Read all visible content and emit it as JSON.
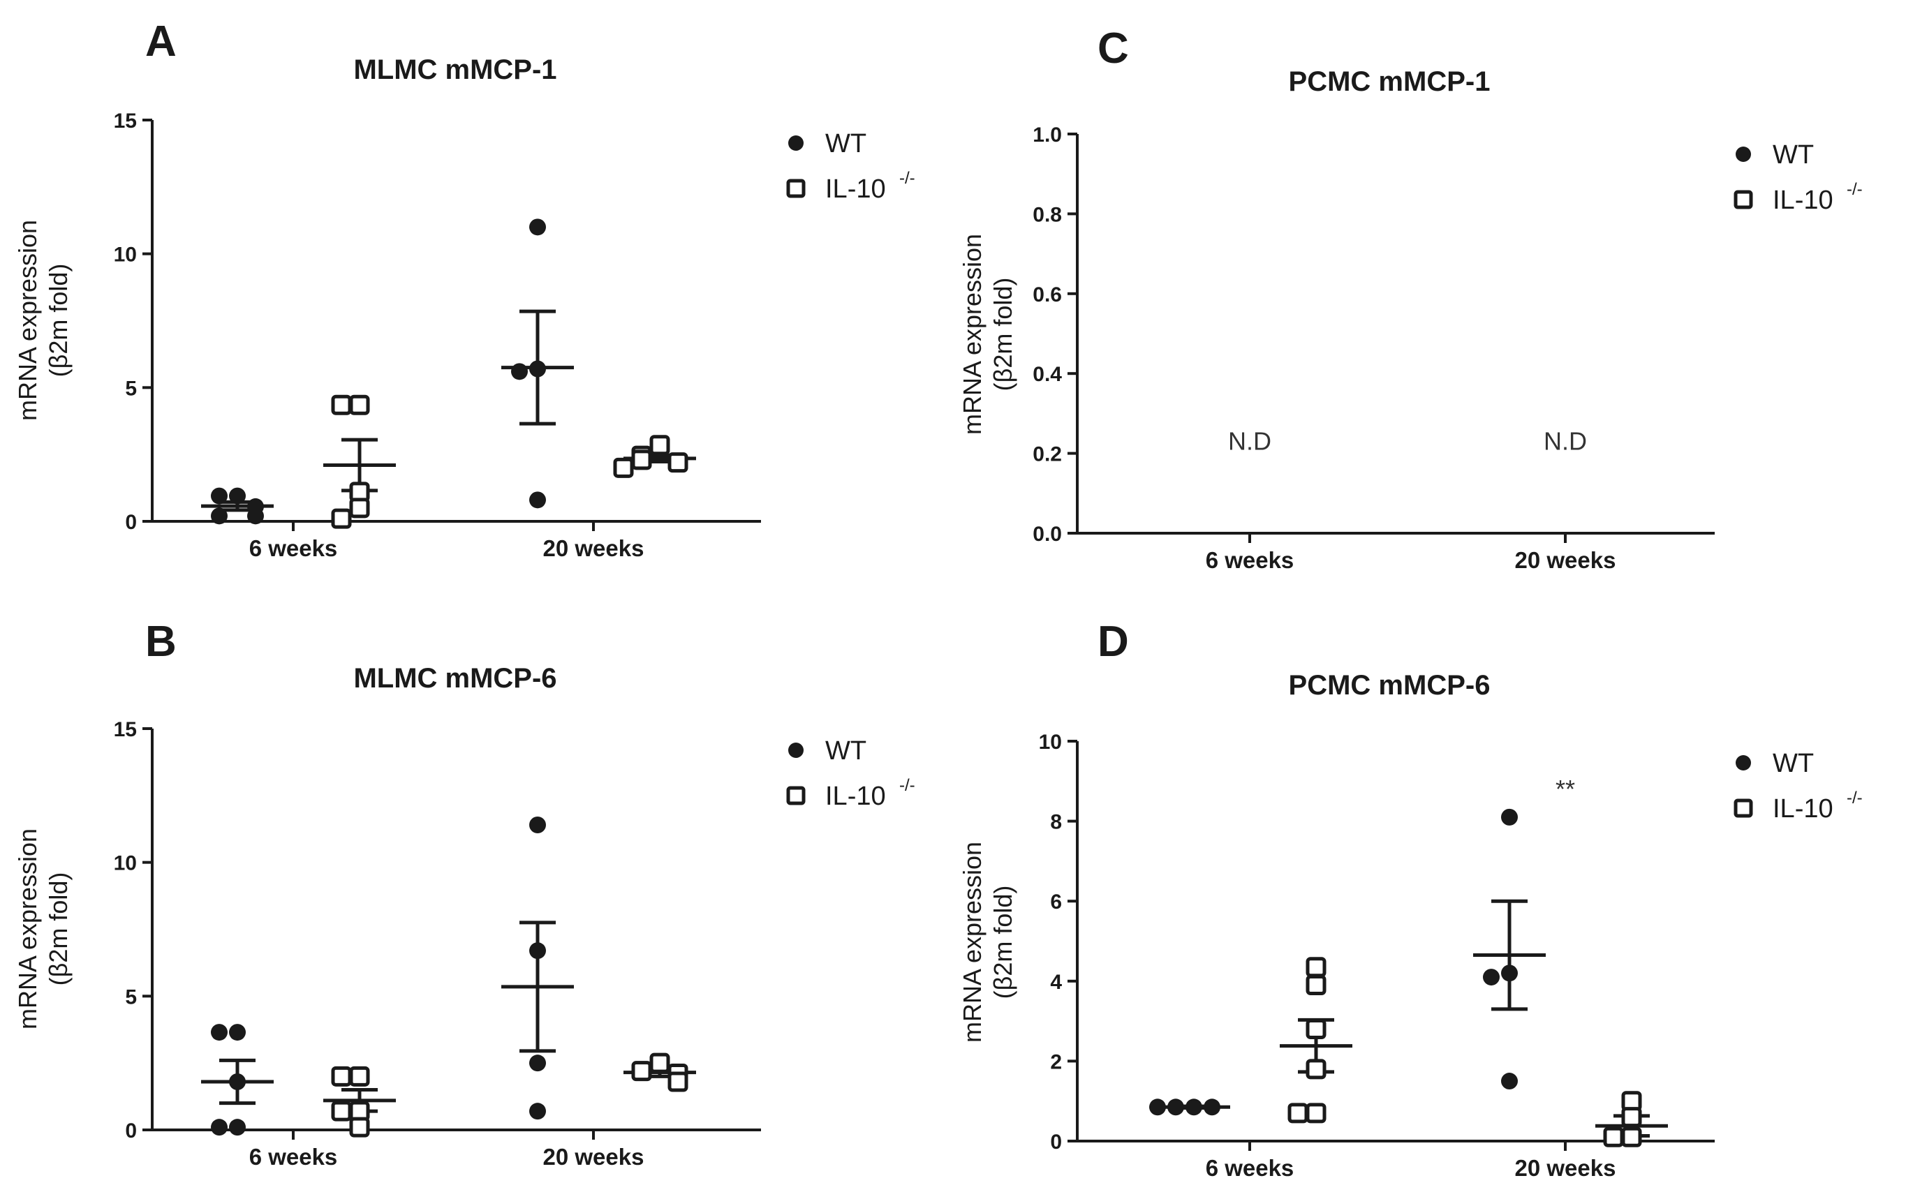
{
  "colors": {
    "ink": "#1a1a1a",
    "background": "#ffffff"
  },
  "chart_data": [
    {
      "id": "A",
      "type": "scatter",
      "panel_label": "A",
      "title": "MLMC mMCP-1",
      "ylabel": "mRNA expression",
      "ylabel2": "(β2m fold)",
      "ylim": [
        0,
        15
      ],
      "yticks": [
        0,
        5,
        10,
        15
      ],
      "categories": [
        "6 weeks",
        "20 weeks"
      ],
      "legend": {
        "wt": "WT",
        "ko_base": "IL-10",
        "ko_sup": "-/-"
      },
      "series": [
        {
          "name": "WT",
          "marker": "filled-circle",
          "groups": [
            {
              "category": "6 weeks",
              "points": [
                0.95,
                0.95,
                0.55,
                0.2,
                0.2
              ],
              "mean": 0.57,
              "sem": 0.15
            },
            {
              "category": "20 weeks",
              "points": [
                11.0,
                5.7,
                5.6,
                0.8
              ],
              "mean": 5.75,
              "sem": 2.1
            }
          ]
        },
        {
          "name": "IL-10-/-",
          "marker": "open-square",
          "groups": [
            {
              "category": "6 weeks",
              "points": [
                4.35,
                4.35,
                1.1,
                0.5,
                0.1
              ],
              "mean": 2.1,
              "sem": 0.95
            },
            {
              "category": "20 weeks",
              "points": [
                2.85,
                2.45,
                2.3,
                2.2,
                2.0
              ],
              "mean": 2.35,
              "sem": 0.12
            }
          ]
        }
      ],
      "annotations": []
    },
    {
      "id": "B",
      "type": "scatter",
      "panel_label": "B",
      "title": "MLMC mMCP-6",
      "ylabel": "mRNA expression",
      "ylabel2": "(β2m fold)",
      "ylim": [
        0,
        15
      ],
      "yticks": [
        0,
        5,
        10,
        15
      ],
      "categories": [
        "6 weeks",
        "20 weeks"
      ],
      "legend": {
        "wt": "WT",
        "ko_base": "IL-10",
        "ko_sup": "-/-"
      },
      "series": [
        {
          "name": "WT",
          "marker": "filled-circle",
          "groups": [
            {
              "category": "6 weeks",
              "points": [
                3.65,
                3.65,
                1.8,
                0.1,
                0.1
              ],
              "mean": 1.8,
              "sem": 0.8
            },
            {
              "category": "20 weeks",
              "points": [
                11.4,
                6.7,
                2.5,
                0.7
              ],
              "mean": 5.35,
              "sem": 2.4
            }
          ]
        },
        {
          "name": "IL-10-/-",
          "marker": "open-square",
          "groups": [
            {
              "category": "6 weeks",
              "points": [
                2.0,
                2.0,
                0.7,
                0.7,
                0.1
              ],
              "mean": 1.1,
              "sem": 0.4
            },
            {
              "category": "20 weeks",
              "points": [
                2.5,
                2.2,
                2.1,
                1.8
              ],
              "mean": 2.15,
              "sem": 0.15
            }
          ]
        }
      ],
      "annotations": []
    },
    {
      "id": "C",
      "type": "scatter",
      "panel_label": "C",
      "title": "PCMC mMCP-1",
      "ylabel": "mRNA expression",
      "ylabel2": "(β2m fold)",
      "ylim": [
        0,
        1.0
      ],
      "yticks": [
        0.0,
        0.2,
        0.4,
        0.6,
        0.8,
        1.0
      ],
      "tick_decimals": 1,
      "categories": [
        "6 weeks",
        "20 weeks"
      ],
      "legend": {
        "wt": "WT",
        "ko_base": "IL-10",
        "ko_sup": "-/-"
      },
      "series": [],
      "annotations": [
        {
          "category": "6 weeks",
          "y": 0.23,
          "text": "N.D"
        },
        {
          "category": "20 weeks",
          "y": 0.23,
          "text": "N.D"
        }
      ]
    },
    {
      "id": "D",
      "type": "scatter",
      "panel_label": "D",
      "title": "PCMC mMCP-6",
      "ylabel": "mRNA expression",
      "ylabel2": "(β2m fold)",
      "ylim": [
        0,
        10
      ],
      "yticks": [
        0,
        2,
        4,
        6,
        8,
        10
      ],
      "categories": [
        "6 weeks",
        "20 weeks"
      ],
      "legend": {
        "wt": "WT",
        "ko_base": "IL-10",
        "ko_sup": "-/-"
      },
      "series": [
        {
          "name": "WT",
          "marker": "filled-circle",
          "groups": [
            {
              "category": "6 weeks",
              "points": [
                0.85,
                0.85,
                0.85,
                0.85
              ],
              "mean": 0.85,
              "sem": 0.02
            },
            {
              "category": "20 weeks",
              "points": [
                8.1,
                4.2,
                4.1,
                1.5
              ],
              "mean": 4.65,
              "sem": 1.35
            }
          ]
        },
        {
          "name": "IL-10-/-",
          "marker": "open-square",
          "groups": [
            {
              "category": "6 weeks",
              "points": [
                4.35,
                3.9,
                2.8,
                1.8,
                0.7,
                0.7
              ],
              "mean": 2.38,
              "sem": 0.65
            },
            {
              "category": "20 weeks",
              "points": [
                1.0,
                0.6,
                0.1,
                0.1
              ],
              "mean": 0.38,
              "sem": 0.25
            }
          ]
        }
      ],
      "annotations": [
        {
          "category": "20 weeks",
          "y": 8.8,
          "text": "**"
        }
      ]
    }
  ]
}
